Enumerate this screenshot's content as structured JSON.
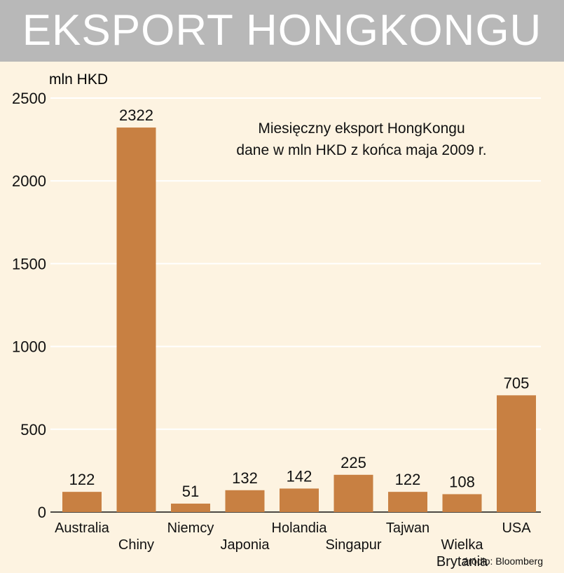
{
  "title": "EKSPORT HONGKONGU",
  "source": "źródło: Bloomberg",
  "colors": {
    "bar": "#c88042",
    "title_band": "#b8b8b8",
    "background": "#fdf3e1",
    "grid": "#ffffff"
  },
  "chart_data": {
    "type": "bar",
    "ylabel": "mln HKD",
    "annotation": [
      "Miesięczny eksport HongKongu",
      "dane  w mln HKD z końca maja 2009 r."
    ],
    "categories": [
      [
        "Australia"
      ],
      [
        "Chiny"
      ],
      [
        "Niemcy"
      ],
      [
        "Japonia"
      ],
      [
        "Holandia"
      ],
      [
        "Singapur"
      ],
      [
        "Tajwan"
      ],
      [
        "Wielka",
        "Brytania"
      ],
      [
        "USA"
      ]
    ],
    "values": [
      122,
      2322,
      51,
      132,
      142,
      225,
      122,
      108,
      705
    ],
    "ylim": [
      0,
      2500
    ],
    "yticks": [
      0,
      500,
      1000,
      1500,
      2000,
      2500
    ],
    "grid": true
  }
}
